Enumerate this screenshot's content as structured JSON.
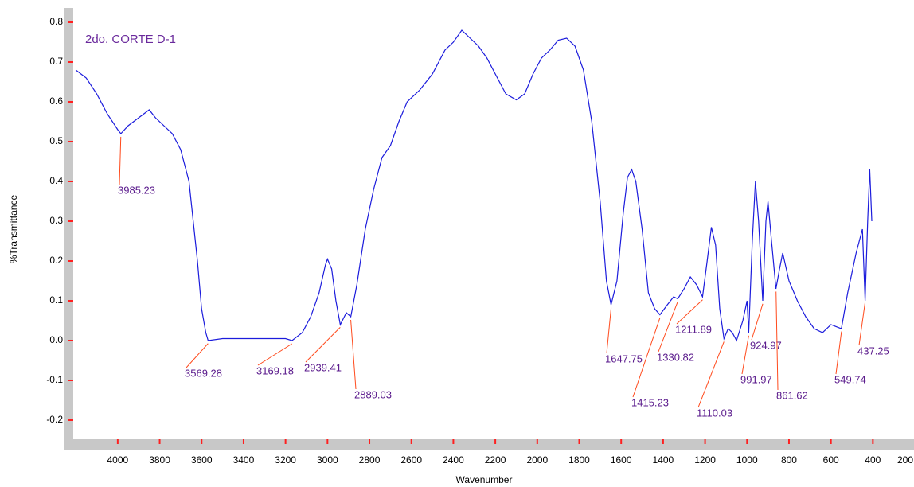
{
  "chart_data": {
    "type": "line",
    "title": "2do. CORTE D-1",
    "x_label": "Wavenumber",
    "y_label": "%Transmittance",
    "xlim": [
      4212,
      204
    ],
    "ylim": [
      -0.248,
      0.832
    ],
    "xticks": [
      4000,
      3800,
      3600,
      3400,
      3200,
      3000,
      2800,
      2600,
      2400,
      2200,
      2000,
      1800,
      1600,
      1400,
      1200,
      1000,
      800,
      600,
      400,
      200
    ],
    "yticks": [
      0.8,
      0.7,
      0.6,
      0.5,
      0.4,
      0.3,
      0.2,
      0.1,
      {
        "value": 0,
        "label": "0.0"
      },
      -0.1,
      -0.2
    ],
    "series": [
      {
        "color": "#1c1cdc",
        "x": [
          4200,
          4150,
          4100,
          4050,
          4000,
          3985,
          3950,
          3900,
          3850,
          3820,
          3780,
          3740,
          3700,
          3660,
          3640,
          3620,
          3600,
          3580,
          3569,
          3500,
          3400,
          3300,
          3200,
          3169,
          3120,
          3080,
          3040,
          3010,
          3000,
          2980,
          2960,
          2939,
          2910,
          2889,
          2860,
          2820,
          2780,
          2740,
          2700,
          2660,
          2620,
          2560,
          2500,
          2440,
          2400,
          2360,
          2320,
          2280,
          2240,
          2200,
          2150,
          2100,
          2060,
          2020,
          1980,
          1940,
          1900,
          1860,
          1820,
          1780,
          1740,
          1700,
          1670,
          1648,
          1620,
          1590,
          1570,
          1550,
          1530,
          1500,
          1470,
          1440,
          1415,
          1380,
          1350,
          1330,
          1300,
          1270,
          1240,
          1212,
          1190,
          1170,
          1150,
          1130,
          1110,
          1090,
          1070,
          1050,
          1020,
          1000,
          992,
          975,
          960,
          945,
          925,
          910,
          900,
          885,
          862,
          845,
          830,
          800,
          760,
          720,
          680,
          640,
          600,
          550,
          520,
          480,
          450,
          437,
          425,
          415,
          405
        ],
        "values": [
          0.68,
          0.66,
          0.62,
          0.57,
          0.53,
          0.52,
          0.54,
          0.56,
          0.58,
          0.56,
          0.54,
          0.52,
          0.48,
          0.4,
          0.3,
          0.2,
          0.08,
          0.02,
          0.0,
          0.005,
          0.005,
          0.005,
          0.005,
          0.0,
          0.02,
          0.06,
          0.12,
          0.19,
          0.205,
          0.18,
          0.1,
          0.04,
          0.07,
          0.06,
          0.14,
          0.28,
          0.38,
          0.46,
          0.49,
          0.55,
          0.6,
          0.63,
          0.67,
          0.73,
          0.75,
          0.78,
          0.76,
          0.74,
          0.71,
          0.67,
          0.62,
          0.605,
          0.62,
          0.67,
          0.71,
          0.73,
          0.755,
          0.76,
          0.74,
          0.68,
          0.55,
          0.35,
          0.15,
          0.09,
          0.15,
          0.32,
          0.41,
          0.43,
          0.4,
          0.28,
          0.12,
          0.08,
          0.065,
          0.09,
          0.11,
          0.105,
          0.13,
          0.16,
          0.14,
          0.11,
          0.2,
          0.285,
          0.24,
          0.08,
          0.005,
          0.03,
          0.02,
          0.0,
          0.05,
          0.1,
          0.02,
          0.25,
          0.4,
          0.3,
          0.1,
          0.3,
          0.35,
          0.26,
          0.13,
          0.18,
          0.22,
          0.15,
          0.1,
          0.06,
          0.03,
          0.02,
          0.04,
          0.03,
          0.12,
          0.22,
          0.28,
          0.1,
          0.3,
          0.43,
          0.3
        ]
      }
    ],
    "peaks": [
      3985.23,
      3569.28,
      3169.18,
      2939.41,
      2889.03,
      1647.75,
      1415.23,
      1330.82,
      1211.89,
      1110.03,
      991.97,
      924.97,
      861.62,
      549.74,
      437.25
    ],
    "peak_color": "#ff4a1c"
  }
}
